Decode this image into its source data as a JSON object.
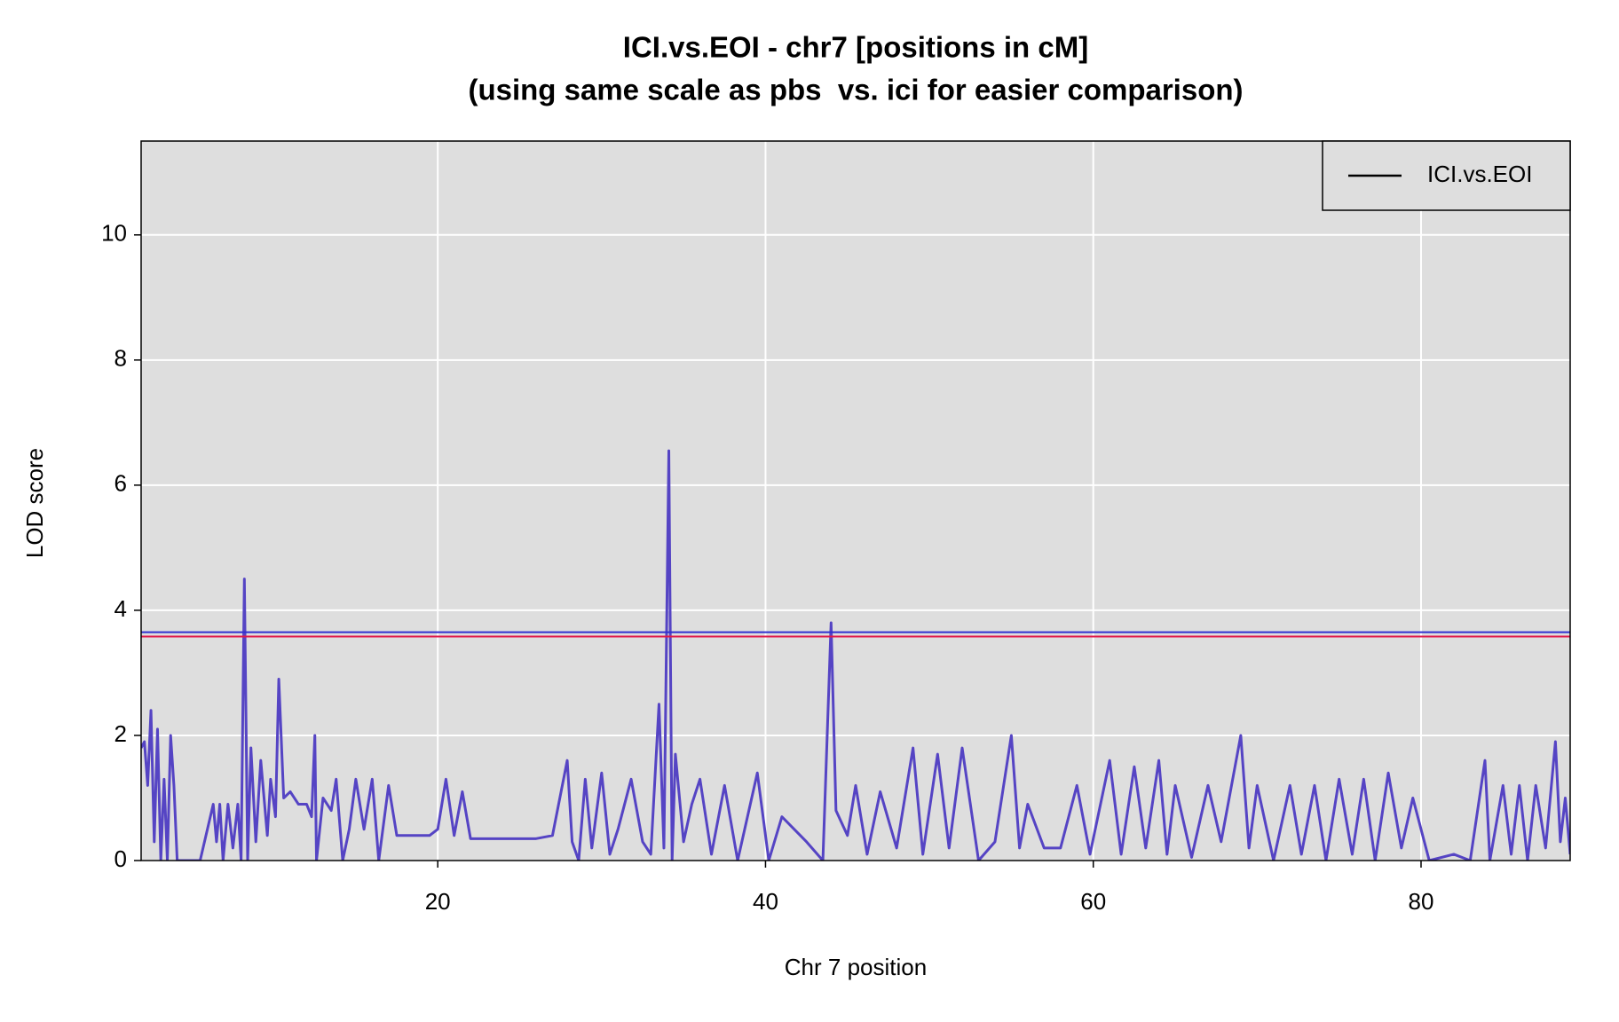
{
  "chart_data": {
    "type": "line",
    "title": "ICI.vs.EOI - chr7 [positions in cM]",
    "subtitle": "(using same scale as pbs  vs. ici for easier comparison)",
    "x_label": "Chr 7 position",
    "y_label": "LOD score",
    "xlim": [
      1.9,
      89.1
    ],
    "ylim": [
      0,
      11.5
    ],
    "xticks": [
      20,
      40,
      60,
      80
    ],
    "yticks": [
      0,
      2,
      4,
      6,
      8,
      10
    ],
    "grid": true,
    "background": "#dedede",
    "legend_position": "top-right",
    "legend_color": "#000000",
    "thresholds": [
      {
        "value": 3.65,
        "color": "#2f2fd0"
      },
      {
        "value": 3.58,
        "color": "#e0184a"
      }
    ],
    "series": [
      {
        "name": "ICI.vs.EOI",
        "color": "#5544c4",
        "x": [
          1.9,
          2.1,
          2.3,
          2.5,
          2.7,
          2.9,
          3.1,
          3.3,
          3.5,
          3.7,
          3.9,
          4.1,
          4.3,
          4.6,
          5.5,
          6.3,
          6.5,
          6.7,
          6.9,
          7.2,
          7.5,
          7.8,
          8.0,
          8.2,
          8.4,
          8.6,
          8.9,
          9.2,
          9.6,
          9.8,
          10.1,
          10.3,
          10.6,
          11.0,
          11.5,
          12.0,
          12.3,
          12.5,
          12.6,
          13.0,
          13.5,
          13.8,
          14.2,
          14.6,
          15.0,
          15.5,
          16.0,
          16.4,
          17.0,
          17.5,
          18.5,
          19.5,
          20.0,
          20.5,
          21.0,
          21.5,
          22.0,
          24.0,
          26.0,
          27.0,
          27.9,
          28.2,
          28.6,
          29.0,
          29.4,
          30.0,
          30.5,
          31.0,
          31.8,
          32.5,
          33.0,
          33.5,
          33.8,
          34.1,
          34.3,
          34.5,
          35.0,
          35.5,
          36.0,
          36.7,
          37.5,
          38.3,
          39.5,
          40.2,
          41.0,
          42.5,
          43.5,
          44.0,
          44.3,
          45.0,
          45.5,
          46.2,
          47.0,
          48.0,
          49.0,
          49.6,
          50.5,
          51.2,
          52.0,
          53.0,
          54.0,
          55.0,
          55.5,
          56.0,
          57.0,
          58.0,
          59.0,
          59.8,
          61.0,
          61.7,
          62.5,
          63.2,
          64.0,
          64.5,
          65.0,
          66.0,
          67.0,
          67.8,
          69.0,
          69.5,
          70.0,
          71.0,
          72.0,
          72.7,
          73.5,
          74.2,
          75.0,
          75.8,
          76.5,
          77.2,
          78.0,
          78.8,
          79.5,
          80.5,
          82.0,
          83.0,
          83.9,
          84.2,
          85.0,
          85.5,
          86.0,
          86.5,
          87.0,
          87.6,
          88.2,
          88.5,
          88.8,
          89.1
        ],
        "values": [
          1.8,
          1.9,
          1.2,
          2.4,
          0.3,
          2.1,
          0.0,
          1.3,
          0.0,
          2.0,
          1.2,
          0.0,
          0.0,
          0.0,
          0.0,
          0.9,
          0.3,
          0.9,
          0.0,
          0.9,
          0.2,
          0.9,
          0.0,
          4.5,
          0.0,
          1.8,
          0.3,
          1.6,
          0.4,
          1.3,
          0.7,
          2.9,
          1.0,
          1.1,
          0.9,
          0.9,
          0.7,
          2.0,
          0.0,
          1.0,
          0.8,
          1.3,
          0.0,
          0.5,
          1.3,
          0.5,
          1.3,
          0.0,
          1.2,
          0.4,
          0.4,
          0.4,
          0.5,
          1.3,
          0.4,
          1.1,
          0.35,
          0.35,
          0.35,
          0.4,
          1.6,
          0.3,
          0.0,
          1.3,
          0.2,
          1.4,
          0.1,
          0.5,
          1.3,
          0.3,
          0.1,
          2.5,
          0.2,
          6.55,
          0.0,
          1.7,
          0.3,
          0.9,
          1.3,
          0.1,
          1.2,
          0.0,
          1.4,
          0.0,
          0.7,
          0.3,
          0.0,
          3.8,
          0.8,
          0.4,
          1.2,
          0.1,
          1.1,
          0.2,
          1.8,
          0.1,
          1.7,
          0.2,
          1.8,
          0.0,
          0.3,
          2.0,
          0.2,
          0.9,
          0.2,
          0.2,
          1.2,
          0.1,
          1.6,
          0.1,
          1.5,
          0.2,
          1.6,
          0.1,
          1.2,
          0.05,
          1.2,
          0.3,
          2.0,
          0.2,
          1.2,
          0.0,
          1.2,
          0.1,
          1.2,
          0.0,
          1.3,
          0.1,
          1.3,
          0.0,
          1.4,
          0.2,
          1.0,
          0.0,
          0.1,
          0.0,
          1.6,
          0.0,
          1.2,
          0.1,
          1.2,
          0.0,
          1.2,
          0.2,
          1.9,
          0.3,
          1.0,
          0.1
        ]
      }
    ]
  }
}
